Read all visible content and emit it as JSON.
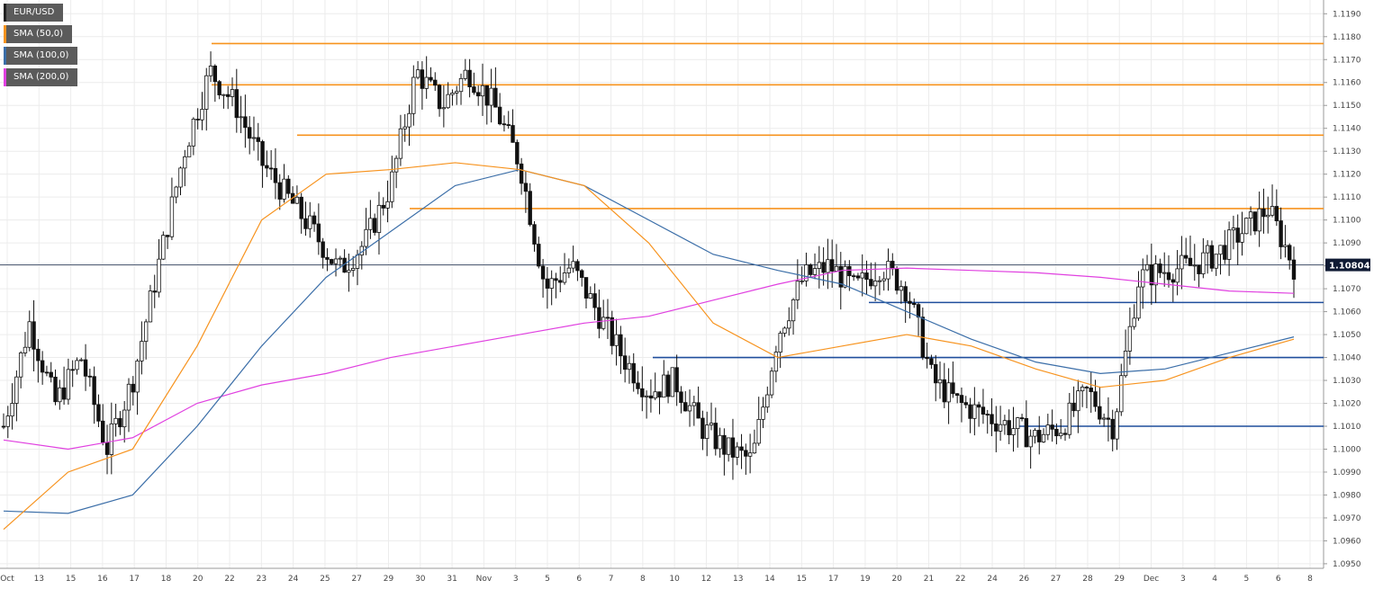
{
  "legend": [
    {
      "label": "EUR/USD",
      "color": "#222222"
    },
    {
      "label": "SMA (50,0)",
      "color": "#f7931e"
    },
    {
      "label": "SMA (100,0)",
      "color": "#3b6ea8"
    },
    {
      "label": "SMA (200,0)",
      "color": "#e040e0"
    }
  ],
  "current_price_label": "1.10804",
  "chart_data": {
    "type": "candlestick",
    "symbol": "EUR/USD",
    "ylim": [
      1.0948,
      1.1196
    ],
    "y_ticks": [
      "1.1190",
      "1.1180",
      "1.1170",
      "1.1160",
      "1.1150",
      "1.1140",
      "1.1130",
      "1.1120",
      "1.1110",
      "1.1100",
      "1.1090",
      "1.1080",
      "1.1070",
      "1.1060",
      "1.1050",
      "1.1040",
      "1.1030",
      "1.1020",
      "1.1010",
      "1.1000",
      "1.0990",
      "1.0980",
      "1.0970",
      "1.0960",
      "1.0950"
    ],
    "x_ticks": [
      "Oct",
      "13",
      "15",
      "16",
      "17",
      "18",
      "20",
      "22",
      "23",
      "24",
      "25",
      "27",
      "29",
      "30",
      "31",
      "Nov",
      "3",
      "5",
      "6",
      "7",
      "8",
      "10",
      "12",
      "13",
      "14",
      "15",
      "17",
      "19",
      "20",
      "21",
      "22",
      "24",
      "26",
      "27",
      "28",
      "29",
      "Dec",
      "3",
      "4",
      "5",
      "6",
      "8"
    ],
    "current_price": 1.10804,
    "horizontal_levels": [
      {
        "value": 1.1177,
        "color": "#f7931e"
      },
      {
        "value": 1.1159,
        "color": "#f7931e"
      },
      {
        "value": 1.1137,
        "color": "#f7931e"
      },
      {
        "value": 1.1105,
        "color": "#f7931e"
      },
      {
        "value": 1.1064,
        "color": "#1f4e9c"
      },
      {
        "value": 1.104,
        "color": "#1f4e9c"
      },
      {
        "value": 1.101,
        "color": "#1f4e9c"
      }
    ],
    "sma_50": [
      [
        0,
        1.0965
      ],
      [
        0.05,
        1.099
      ],
      [
        0.1,
        1.1
      ],
      [
        0.15,
        1.1045
      ],
      [
        0.2,
        1.11
      ],
      [
        0.25,
        1.112
      ],
      [
        0.3,
        1.1122
      ],
      [
        0.35,
        1.1125
      ],
      [
        0.4,
        1.1122
      ],
      [
        0.45,
        1.1115
      ],
      [
        0.5,
        1.109
      ],
      [
        0.55,
        1.1055
      ],
      [
        0.6,
        1.104
      ],
      [
        0.65,
        1.1045
      ],
      [
        0.7,
        1.105
      ],
      [
        0.75,
        1.1045
      ],
      [
        0.8,
        1.1035
      ],
      [
        0.85,
        1.1027
      ],
      [
        0.9,
        1.103
      ],
      [
        0.95,
        1.104
      ],
      [
        1,
        1.1048
      ]
    ],
    "sma_100": [
      [
        0,
        1.0973
      ],
      [
        0.05,
        1.0972
      ],
      [
        0.1,
        1.098
      ],
      [
        0.15,
        1.101
      ],
      [
        0.2,
        1.1045
      ],
      [
        0.25,
        1.1075
      ],
      [
        0.3,
        1.1095
      ],
      [
        0.35,
        1.1115
      ],
      [
        0.4,
        1.1122
      ],
      [
        0.45,
        1.1115
      ],
      [
        0.5,
        1.11
      ],
      [
        0.55,
        1.1085
      ],
      [
        0.6,
        1.1078
      ],
      [
        0.65,
        1.1072
      ],
      [
        0.7,
        1.106
      ],
      [
        0.75,
        1.1048
      ],
      [
        0.8,
        1.1038
      ],
      [
        0.85,
        1.1033
      ],
      [
        0.9,
        1.1035
      ],
      [
        0.95,
        1.1042
      ],
      [
        1,
        1.1049
      ]
    ],
    "sma_200": [
      [
        0,
        1.1004
      ],
      [
        0.05,
        1.1
      ],
      [
        0.1,
        1.1005
      ],
      [
        0.15,
        1.102
      ],
      [
        0.2,
        1.1028
      ],
      [
        0.25,
        1.1033
      ],
      [
        0.3,
        1.104
      ],
      [
        0.35,
        1.1045
      ],
      [
        0.4,
        1.105
      ],
      [
        0.45,
        1.1055
      ],
      [
        0.5,
        1.1058
      ],
      [
        0.55,
        1.1065
      ],
      [
        0.6,
        1.1072
      ],
      [
        0.65,
        1.1078
      ],
      [
        0.7,
        1.1079
      ],
      [
        0.75,
        1.1078
      ],
      [
        0.8,
        1.1077
      ],
      [
        0.85,
        1.1075
      ],
      [
        0.9,
        1.1072
      ],
      [
        0.95,
        1.1069
      ],
      [
        1,
        1.1068
      ]
    ],
    "price_path": [
      [
        0,
        1.101
      ],
      [
        0.02,
        1.1055
      ],
      [
        0.04,
        1.102
      ],
      [
        0.06,
        1.104
      ],
      [
        0.08,
        1.1
      ],
      [
        0.1,
        1.103
      ],
      [
        0.12,
        1.108
      ],
      [
        0.14,
        1.113
      ],
      [
        0.16,
        1.1165
      ],
      [
        0.18,
        1.115
      ],
      [
        0.2,
        1.1125
      ],
      [
        0.22,
        1.111
      ],
      [
        0.24,
        1.1095
      ],
      [
        0.26,
        1.1078
      ],
      [
        0.28,
        1.109
      ],
      [
        0.3,
        1.1115
      ],
      [
        0.32,
        1.1165
      ],
      [
        0.34,
        1.115
      ],
      [
        0.36,
        1.1165
      ],
      [
        0.38,
        1.115
      ],
      [
        0.4,
        1.1125
      ],
      [
        0.42,
        1.107
      ],
      [
        0.44,
        1.108
      ],
      [
        0.46,
        1.106
      ],
      [
        0.48,
        1.104
      ],
      [
        0.5,
        1.1025
      ],
      [
        0.52,
        1.103
      ],
      [
        0.54,
        1.101
      ],
      [
        0.56,
        1.1
      ],
      [
        0.58,
        1.0995
      ],
      [
        0.6,
        1.105
      ],
      [
        0.62,
        1.1075
      ],
      [
        0.64,
        1.108
      ],
      [
        0.66,
        1.107
      ],
      [
        0.68,
        1.108
      ],
      [
        0.7,
        1.107
      ],
      [
        0.72,
        1.103
      ],
      [
        0.74,
        1.102
      ],
      [
        0.76,
        1.1015
      ],
      [
        0.78,
        1.101
      ],
      [
        0.8,
        1.1005
      ],
      [
        0.82,
        1.101
      ],
      [
        0.84,
        1.1025
      ],
      [
        0.86,
        1.101
      ],
      [
        0.88,
        1.1075
      ],
      [
        0.9,
        1.1078
      ],
      [
        0.92,
        1.108
      ],
      [
        0.94,
        1.1085
      ],
      [
        0.96,
        1.1095
      ],
      [
        0.98,
        1.1105
      ],
      [
        1,
        1.108
      ]
    ]
  }
}
